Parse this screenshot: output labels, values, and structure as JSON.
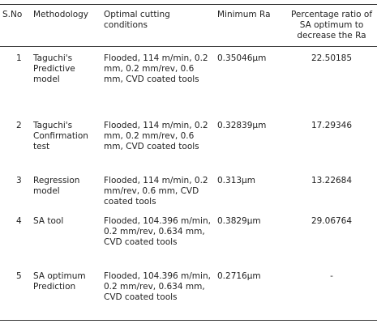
{
  "table": {
    "header": [
      "S.No",
      "Methodology",
      "Optimal cutting conditions",
      "Minimum Ra",
      "Percentage ratio of SA optimum to decrease  the Ra"
    ],
    "rows": [
      [
        "1",
        "Taguchi's Predictive model",
        "Flooded, 114 m/min, 0.2 mm, 0.2 mm/rev, 0.6 mm, CVD coated tools",
        "0.35046µm",
        "22.50185"
      ],
      [
        "2",
        "Taguchi's Confirmation test",
        "Flooded, 114 m/min, 0.2 mm, 0.2 mm/rev, 0.6 mm, CVD coated tools",
        "0.32839µm",
        "17.29346"
      ],
      [
        "3",
        "Regression model",
        "Flooded, 114 m/min, 0.2 mm/rev, 0.6 mm, CVD coated tools",
        "0.313µm",
        "13.22684"
      ],
      [
        "4",
        "SA tool",
        "Flooded, 104.396 m/min, 0.2 mm/rev, 0.634 mm, CVD coated tools",
        "0.3829µm",
        "29.06764"
      ],
      [
        "5",
        "SA optimum Prediction",
        "Flooded, 104.396 m/min, 0.2 mm/rev, 0.634 mm, CVD coated tools",
        "0.2716µm",
        "-"
      ]
    ]
  }
}
